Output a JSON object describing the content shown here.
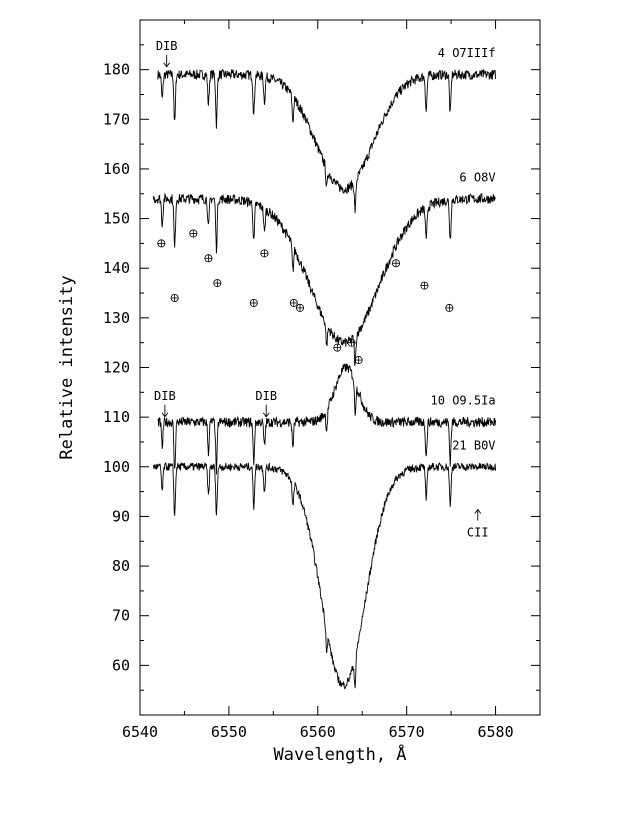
{
  "chart_data": {
    "type": "line",
    "title": "",
    "xlabel": "Wavelength, Å",
    "ylabel": "Relative intensity",
    "xlim": [
      6540,
      6585
    ],
    "ylim": [
      50,
      190
    ],
    "x_ticks": [
      6540,
      6550,
      6560,
      6570,
      6580
    ],
    "y_ticks": [
      60,
      70,
      80,
      90,
      100,
      110,
      120,
      130,
      140,
      150,
      160,
      170,
      180
    ],
    "grid": false,
    "series": [
      {
        "name": "4 O7IIIf",
        "profile": "absorption",
        "x_range": [
          6542,
          6580
        ],
        "continuum": 179,
        "line_center": 6563,
        "line_depth": 23,
        "line_width": 4.5,
        "noise": 1.0
      },
      {
        "name": "6 O8V",
        "profile": "absorption",
        "x_range": [
          6541.5,
          6580
        ],
        "continuum": 154,
        "line_center": 6563,
        "line_depth": 29,
        "line_width": 5.5,
        "noise": 1.0
      },
      {
        "name": "10 O9.5Ia",
        "profile": "emission",
        "x_range": [
          6542,
          6580
        ],
        "continuum": 109,
        "line_center": 6563.2,
        "line_depth": -11,
        "line_width": 1.8,
        "noise": 1.0
      },
      {
        "name": "21 B0V",
        "profile": "absorption",
        "x_range": [
          6541.5,
          6580
        ],
        "continuum": 100,
        "line_center": 6562.9,
        "line_depth": 44,
        "line_width": 3.5,
        "noise": 0.8
      }
    ],
    "sharp_lines": [
      {
        "x": 6542.5,
        "depth": 5
      },
      {
        "x": 6543.9,
        "depth": 10
      },
      {
        "x": 6547.7,
        "depth": 6
      },
      {
        "x": 6548.6,
        "depth": 10
      },
      {
        "x": 6552.8,
        "depth": 8
      },
      {
        "x": 6554.0,
        "depth": 5
      },
      {
        "x": 6557.2,
        "depth": 5
      },
      {
        "x": 6561.0,
        "depth": 4
      },
      {
        "x": 6564.2,
        "depth": 6
      },
      {
        "x": 6572.2,
        "depth": 7
      },
      {
        "x": 6574.9,
        "depth": 8
      }
    ],
    "telluric_markers": [
      {
        "x": 6542.4,
        "y": 145
      },
      {
        "x": 6543.9,
        "y": 134
      },
      {
        "x": 6546.0,
        "y": 147
      },
      {
        "x": 6547.7,
        "y": 142
      },
      {
        "x": 6548.7,
        "y": 137
      },
      {
        "x": 6552.8,
        "y": 133
      },
      {
        "x": 6554.0,
        "y": 143
      },
      {
        "x": 6557.3,
        "y": 133
      },
      {
        "x": 6558.0,
        "y": 132
      },
      {
        "x": 6562.2,
        "y": 124
      },
      {
        "x": 6563.8,
        "y": 125
      },
      {
        "x": 6564.6,
        "y": 121.5
      },
      {
        "x": 6568.8,
        "y": 141
      },
      {
        "x": 6572.0,
        "y": 136.5
      },
      {
        "x": 6574.8,
        "y": 132
      }
    ],
    "annotations": [
      {
        "text": "DIB",
        "x": 6543.0,
        "y": 184,
        "arrow": "down"
      },
      {
        "text": "DIB",
        "x": 6542.8,
        "y": 113.5,
        "arrow": "down"
      },
      {
        "text": "DIB",
        "x": 6554.2,
        "y": 113.5,
        "arrow": "down"
      },
      {
        "text": "CII",
        "x": 6578.0,
        "y": 92,
        "arrow": "up"
      }
    ]
  }
}
